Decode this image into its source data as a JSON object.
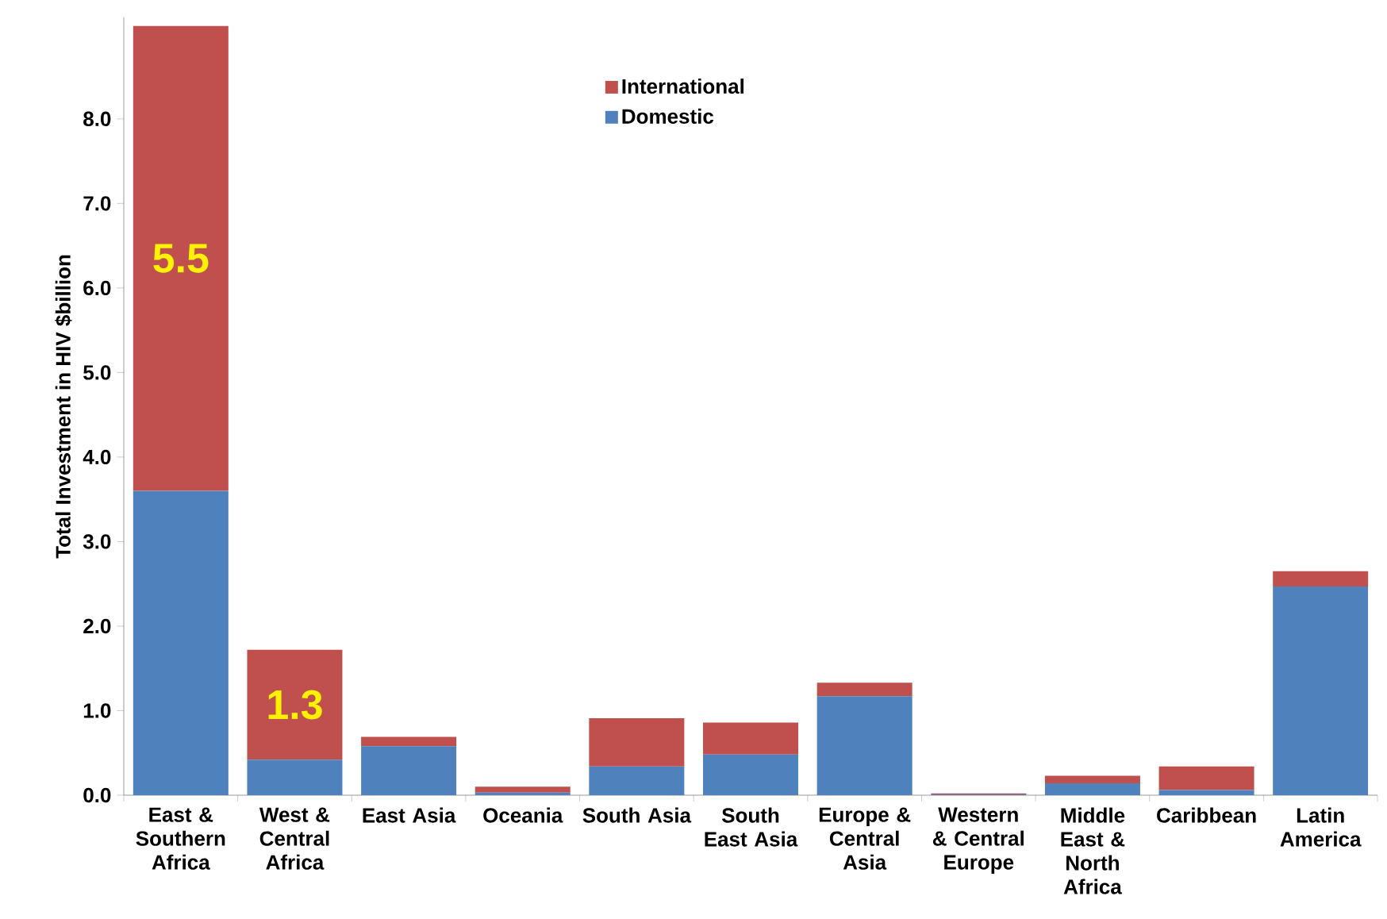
{
  "chart_data": {
    "type": "bar",
    "stacked": true,
    "ylabel": "Total Investment in HIV $billion",
    "categories": [
      "East & Southern Africa",
      "West & Central Africa",
      "East Asia",
      "Oceania",
      "South Asia",
      "South East Asia",
      "Europe & Central Asia",
      "Western & Central Europe",
      "Middle East & North Africa",
      "Caribbean",
      "Latin America"
    ],
    "series": [
      {
        "name": "Domestic",
        "color": "#4f81bd",
        "values": [
          3.6,
          0.42,
          0.58,
          0.03,
          0.34,
          0.48,
          1.17,
          0.01,
          0.14,
          0.06,
          2.47
        ]
      },
      {
        "name": "International",
        "color": "#c0504d",
        "values": [
          5.5,
          1.3,
          0.11,
          0.07,
          0.57,
          0.38,
          0.16,
          0.01,
          0.09,
          0.28,
          0.18
        ],
        "value_labels": [
          "5.5",
          "1.3",
          null,
          null,
          null,
          null,
          null,
          null,
          null,
          null,
          null
        ]
      }
    ],
    "ylim": [
      0,
      9.2
    ],
    "yticks": [
      {
        "value": 0,
        "label": "0.0"
      },
      {
        "value": 1,
        "label": "1.0"
      },
      {
        "value": 2,
        "label": "2.0"
      },
      {
        "value": 3,
        "label": "3.0"
      },
      {
        "value": 4,
        "label": "4.0"
      },
      {
        "value": 5,
        "label": "5.0"
      },
      {
        "value": 6,
        "label": "6.0"
      },
      {
        "value": 7,
        "label": "7.0"
      },
      {
        "value": 8,
        "label": "8.0"
      }
    ],
    "legend": "top"
  }
}
